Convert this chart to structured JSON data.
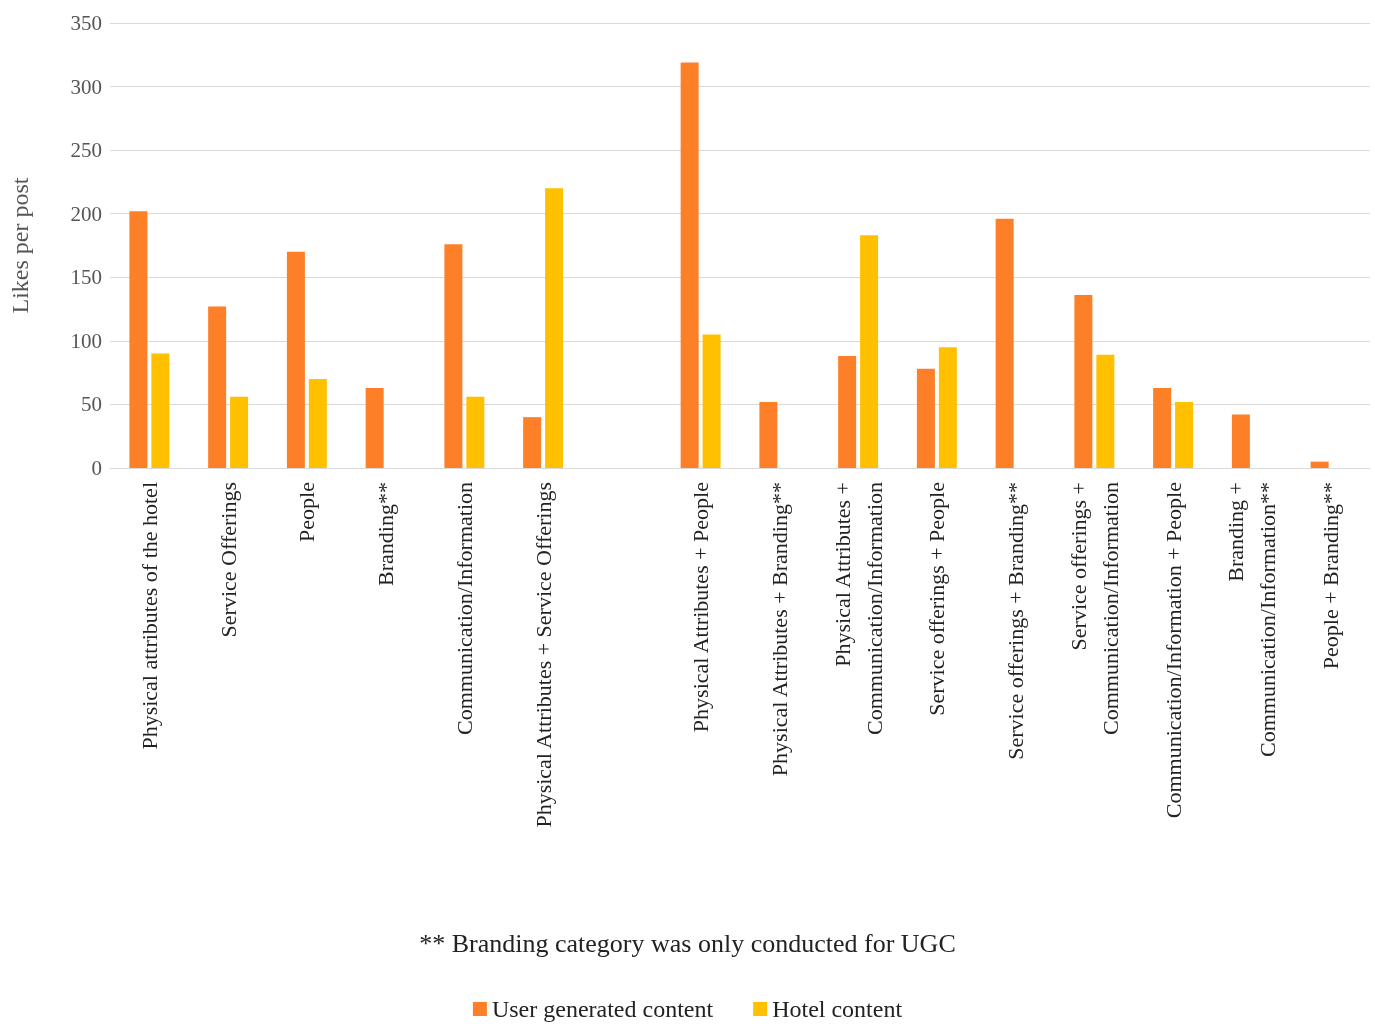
{
  "chart_data": {
    "type": "bar",
    "ylabel": "Likes per post",
    "categories": [
      "Physical attributes of the hotel",
      "Service Offerings",
      "People",
      "Branding**",
      "Communication/Information",
      "Physical Attributes + Service Offerings",
      null,
      "Physical Attributes + People",
      "Physical Attributes + Branding**",
      "Physical Attributes +\nCommunication/Information",
      "Service offerings + People",
      "Service offerings + Branding**",
      "Service offerings +\nCommunication/Information",
      "Communication/Information + People",
      "Branding +\nCommunication/Information**",
      "People + Branding**"
    ],
    "series": [
      {
        "name": "User generated content",
        "color": "#fd7f28",
        "values": [
          202,
          127,
          170,
          63,
          176,
          40,
          null,
          319,
          52,
          88,
          78,
          196,
          136,
          63,
          42,
          5
        ]
      },
      {
        "name": "Hotel content",
        "color": "#ffc000",
        "values": [
          90,
          56,
          70,
          null,
          56,
          220,
          null,
          105,
          null,
          183,
          95,
          null,
          89,
          52,
          null,
          null
        ]
      }
    ],
    "ylim": [
      0,
      350
    ],
    "yticks": [
      0,
      50,
      100,
      150,
      200,
      250,
      300,
      350
    ],
    "grid": "y",
    "legend": "bottom",
    "annotations": [
      "** Branding category was only conducted for UGC"
    ]
  }
}
